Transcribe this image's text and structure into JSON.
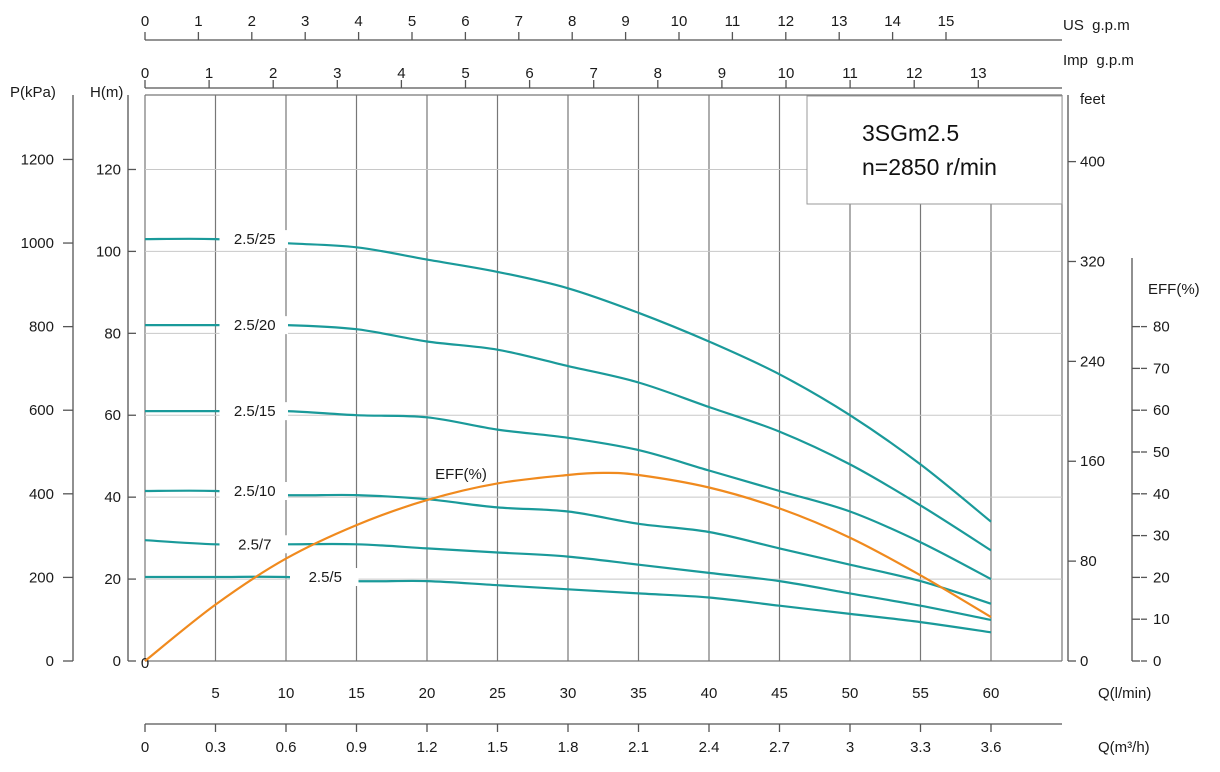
{
  "chart_data": {
    "type": "line",
    "title": "3SGm2.5",
    "subtitle": "n=2850 r/min",
    "x_axes": {
      "q_lmin": {
        "label": "Q(l/min)",
        "range": [
          0,
          65
        ],
        "ticks": [
          5,
          10,
          15,
          20,
          25,
          30,
          35,
          40,
          45,
          50,
          55,
          60
        ]
      },
      "q_m3h": {
        "label": "Q(m³/h)",
        "range": [
          0,
          3.9
        ],
        "ticks": [
          "0",
          "0.3",
          "0.6",
          "0.9",
          "1.2",
          "1.5",
          "1.8",
          "2.1",
          "2.4",
          "2.7",
          "3",
          "3.3",
          "3.6"
        ]
      },
      "us_gpm": {
        "label": "US  g.p.m",
        "range": [
          0,
          17.17
        ],
        "ticks": [
          0,
          1,
          2,
          3,
          4,
          5,
          6,
          7,
          8,
          9,
          10,
          11,
          12,
          13,
          14,
          15
        ]
      },
      "imp_gpm": {
        "label": "Imp  g.p.m",
        "range": [
          0,
          14.3
        ],
        "ticks": [
          0,
          1,
          2,
          3,
          4,
          5,
          6,
          7,
          8,
          9,
          10,
          11,
          12,
          13
        ]
      }
    },
    "y_axes": {
      "h_m": {
        "label": "H(m)",
        "range": [
          0,
          140
        ],
        "ticks": [
          0,
          20,
          40,
          60,
          80,
          100,
          120
        ]
      },
      "p_kpa": {
        "label": "P(kPa)",
        "range": [
          0,
          1372
        ],
        "ticks": [
          0,
          200,
          400,
          600,
          800,
          1000,
          1200
        ]
      },
      "feet": {
        "label": "feet",
        "range": [
          0,
          459
        ],
        "ticks": [
          0,
          80,
          160,
          240,
          320,
          400
        ]
      },
      "eff": {
        "label": "EFF(%)",
        "range": [
          0,
          100
        ],
        "ticks": [
          0,
          10,
          20,
          30,
          40,
          50,
          60,
          70,
          80
        ]
      }
    },
    "series": [
      {
        "name": "2.5/25",
        "x": [
          0,
          5,
          10,
          15,
          20,
          25,
          30,
          35,
          40,
          45,
          50,
          55,
          60
        ],
        "y": [
          103,
          103,
          102,
          101,
          98,
          95,
          91,
          85,
          78,
          70,
          60,
          48,
          34
        ]
      },
      {
        "name": "2.5/20",
        "x": [
          0,
          5,
          10,
          15,
          20,
          25,
          30,
          35,
          40,
          45,
          50,
          55,
          60
        ],
        "y": [
          82,
          82,
          82,
          81,
          78,
          76,
          72,
          68,
          62,
          56,
          48,
          38,
          27
        ]
      },
      {
        "name": "2.5/15",
        "x": [
          0,
          5,
          10,
          15,
          20,
          25,
          30,
          35,
          40,
          45,
          50,
          55,
          60
        ],
        "y": [
          61,
          61,
          61,
          60,
          59.5,
          56.5,
          54.5,
          51.5,
          46.5,
          41.5,
          36.5,
          29,
          20
        ]
      },
      {
        "name": "2.5/10",
        "x": [
          0,
          5,
          10,
          15,
          20,
          25,
          30,
          35,
          40,
          45,
          50,
          55,
          60
        ],
        "y": [
          41.5,
          41.5,
          40.5,
          40.5,
          39.5,
          37.5,
          36.5,
          33.5,
          31.5,
          27.5,
          23.5,
          19.5,
          14
        ]
      },
      {
        "name": "2.5/7",
        "x": [
          0,
          5,
          10,
          15,
          20,
          25,
          30,
          35,
          40,
          45,
          50,
          55,
          60
        ],
        "y": [
          29.5,
          28.5,
          28.5,
          28.5,
          27.5,
          26.5,
          25.5,
          23.5,
          21.5,
          19.5,
          16.5,
          13.5,
          10
        ]
      },
      {
        "name": "2.5/5",
        "x": [
          0,
          5,
          10,
          15,
          20,
          25,
          30,
          35,
          40,
          45,
          50,
          55,
          60
        ],
        "y": [
          20.5,
          20.5,
          20.5,
          19.5,
          19.5,
          18.5,
          17.5,
          16.5,
          15.5,
          13.5,
          11.5,
          9.5,
          7
        ]
      },
      {
        "name": "EFF(%)",
        "axis": "eff",
        "x": [
          0,
          5,
          10,
          15,
          20,
          25,
          30,
          32.5,
          35,
          40,
          45,
          50,
          55,
          60
        ],
        "y": [
          0,
          13.5,
          24.5,
          32.5,
          38.5,
          42.5,
          44.5,
          45,
          44.5,
          41.5,
          36.5,
          29.5,
          20.5,
          10.5
        ]
      }
    ],
    "series_labels_shown": [
      "2.5/25",
      "2.5/20",
      "2.5/15",
      "2.5/10",
      "2.5/7",
      "2.5/5",
      "EFF(%)"
    ],
    "grid": true,
    "colors": {
      "head_curves": "#1a9a9a",
      "efficiency_curve": "#f08a1e",
      "grid_major": "#777777",
      "grid_minor": "#c8c8c8"
    }
  }
}
